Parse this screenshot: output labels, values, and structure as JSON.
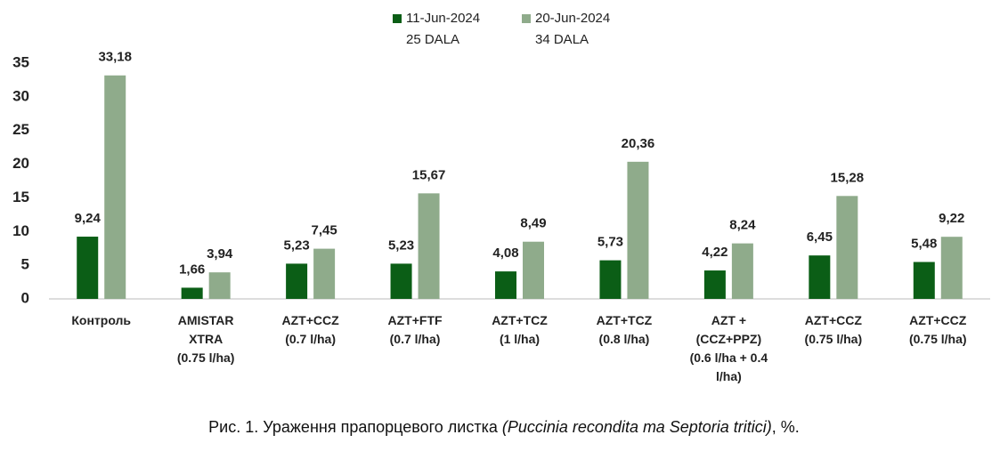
{
  "chart_data": {
    "type": "bar",
    "categories": [
      "Контроль",
      "AMISTAR\nXTRA\n(0.75 l/ha)",
      "AZT+CCZ\n(0.7 l/ha)",
      "AZT+FTF\n(0.7 l/ha)",
      "AZT+TCZ\n(1 l/ha)",
      "AZT+TCZ\n(0.8 l/ha)",
      "AZT +\n(CCZ+PPZ)\n(0.6 l/ha + 0.4\nl/ha)",
      "AZT+CCZ\n(0.75 l/ha)",
      "AZT+CCZ\n(0.75 l/ha)"
    ],
    "series": [
      {
        "name": "11-Jun-2024\n25 DALA",
        "color": "#0b5e16",
        "values": [
          9.24,
          1.66,
          5.23,
          5.23,
          4.08,
          5.73,
          4.22,
          6.45,
          5.48
        ],
        "value_labels": [
          "9,24",
          "1,66",
          "5,23",
          "5,23",
          "4,08",
          "5,73",
          "4,22",
          "6,45",
          "5,48"
        ]
      },
      {
        "name": "20-Jun-2024\n34 DALA",
        "color": "#8fab8b",
        "values": [
          33.18,
          3.94,
          7.45,
          15.67,
          8.49,
          20.36,
          8.24,
          15.28,
          9.22
        ],
        "value_labels": [
          "33,18",
          "3,94",
          "7,45",
          "15,67",
          "8,49",
          "20,36",
          "8,24",
          "15,28",
          "9,22"
        ]
      }
    ],
    "ylim": [
      0,
      35
    ],
    "yticks": [
      0,
      5,
      10,
      15,
      20,
      25,
      30,
      35
    ],
    "grid": false,
    "legend": "top",
    "caption": [
      "Рис. 1. Ураження прапорцевого листка ",
      "(Puccinia recondita та Septoria tritici)",
      ", %."
    ]
  }
}
